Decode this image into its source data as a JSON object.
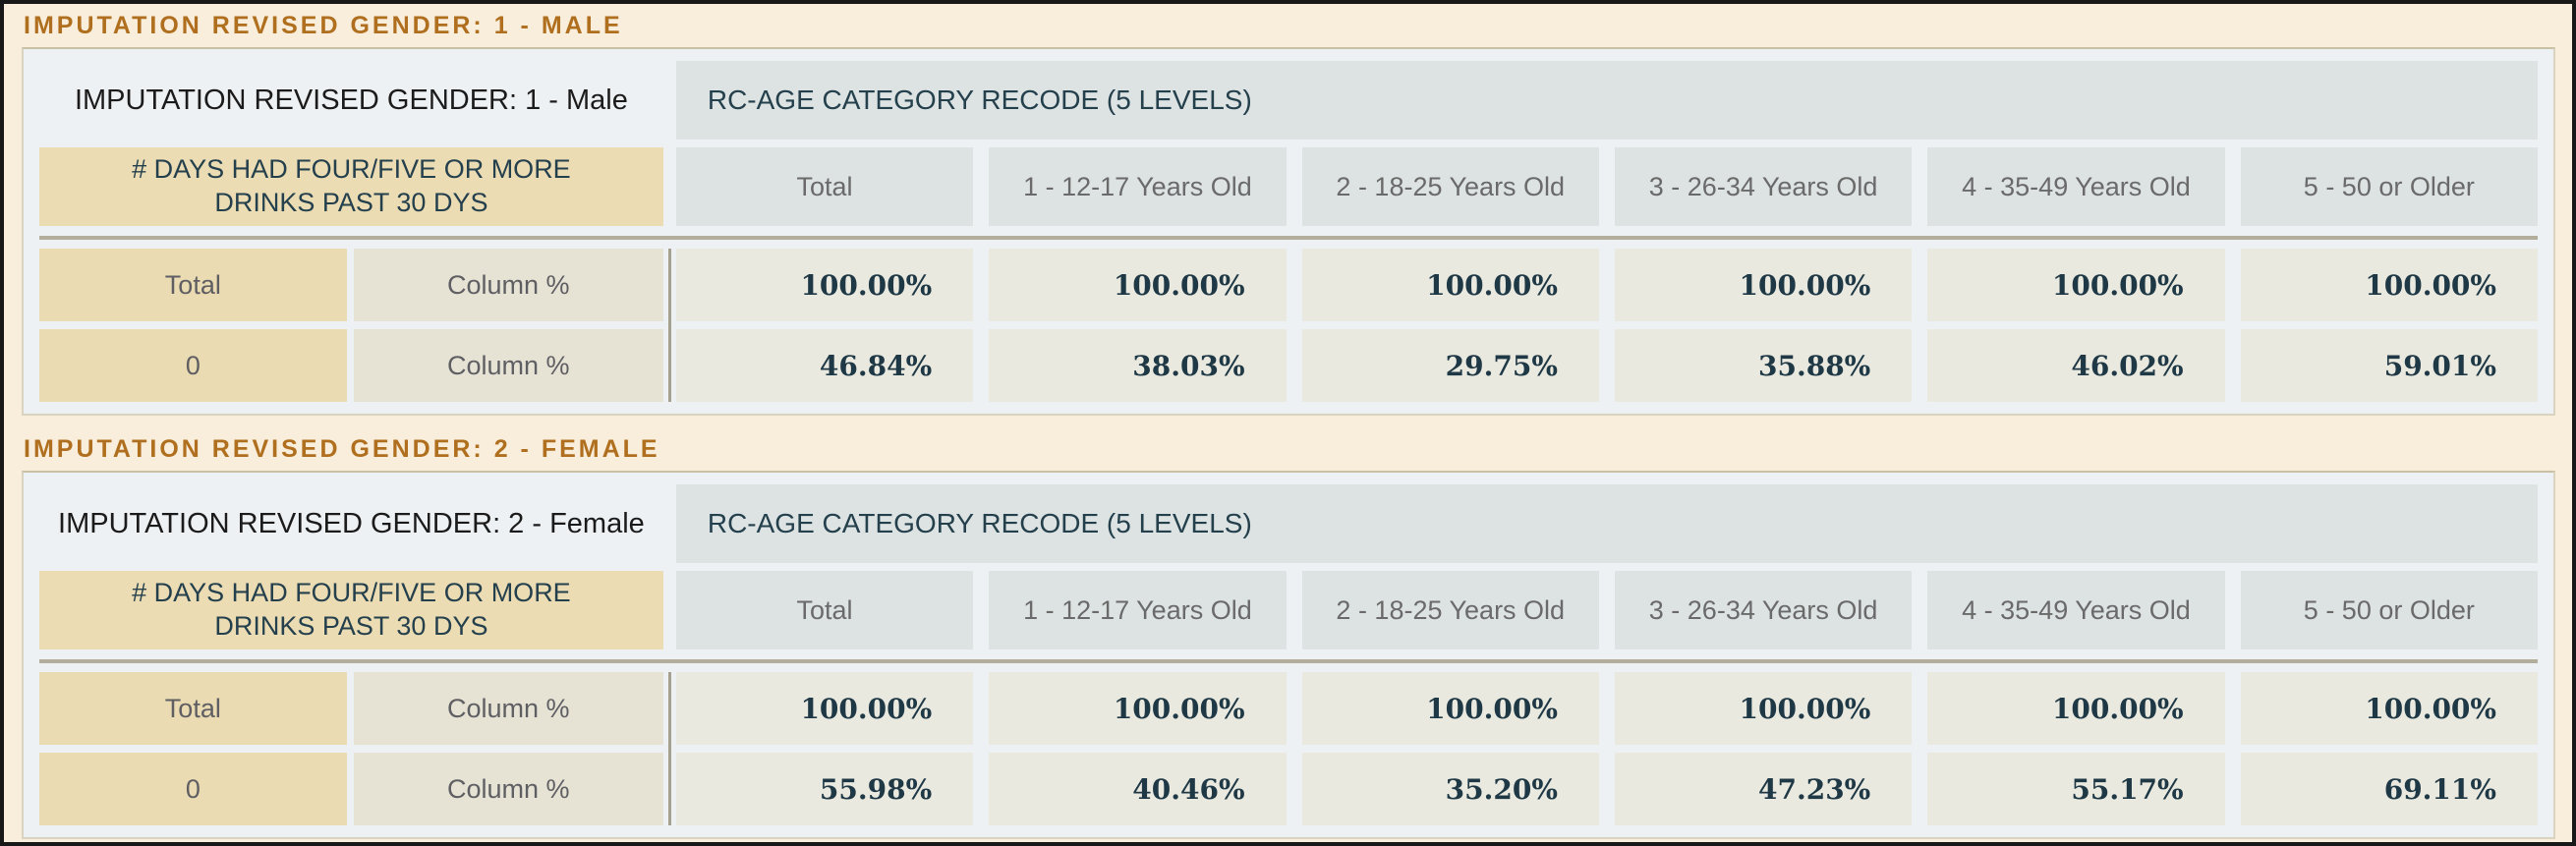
{
  "colors": {
    "page_background": "#f8eedb",
    "page_border": "#181818",
    "section_title_accent": "#b06f1e",
    "table_background": "#eef1f3",
    "column_header_bg": "#dde3e2",
    "row_header_bg": "#ebdbb3",
    "statistic_bg": "#e6e3d5",
    "value_bg": "#eae9e0",
    "dim_header_bg": "#ecdcb4",
    "value_text": "#1f3845",
    "separator_line": "#a5a18e"
  },
  "sections": [
    {
      "title": "IMPUTATION REVISED GENDER: 1 - MALE",
      "table": {
        "row_var_label": "IMPUTATION REVISED GENDER: 1 - Male",
        "col_var_label": "RC-AGE CATEGORY RECODE (5 LEVELS)",
        "row_dim_label": "# DAYS HAD FOUR/FIVE OR MORE DRINKS PAST 30 DYS",
        "columns": [
          "Total",
          "1 - 12-17 Years Old",
          "2 - 18-25 Years Old",
          "3 - 26-34 Years Old",
          "4 - 35-49 Years Old",
          "5 - 50 or Older"
        ],
        "rows": [
          {
            "label": "Total",
            "statistic": "Column %",
            "values": [
              "100.00%",
              "100.00%",
              "100.00%",
              "100.00%",
              "100.00%",
              "100.00%"
            ]
          },
          {
            "label": "0",
            "statistic": "Column %",
            "values": [
              "46.84%",
              "38.03%",
              "29.75%",
              "35.88%",
              "46.02%",
              "59.01%"
            ]
          }
        ]
      }
    },
    {
      "title": "IMPUTATION REVISED GENDER: 2 - FEMALE",
      "table": {
        "row_var_label": "IMPUTATION REVISED GENDER: 2 - Female",
        "col_var_label": "RC-AGE CATEGORY RECODE (5 LEVELS)",
        "row_dim_label": "# DAYS HAD FOUR/FIVE OR MORE DRINKS PAST 30 DYS",
        "columns": [
          "Total",
          "1 - 12-17 Years Old",
          "2 - 18-25 Years Old",
          "3 - 26-34 Years Old",
          "4 - 35-49 Years Old",
          "5 - 50 or Older"
        ],
        "rows": [
          {
            "label": "Total",
            "statistic": "Column %",
            "values": [
              "100.00%",
              "100.00%",
              "100.00%",
              "100.00%",
              "100.00%",
              "100.00%"
            ]
          },
          {
            "label": "0",
            "statistic": "Column %",
            "values": [
              "55.98%",
              "40.46%",
              "35.20%",
              "47.23%",
              "55.17%",
              "69.11%"
            ]
          }
        ]
      }
    }
  ]
}
